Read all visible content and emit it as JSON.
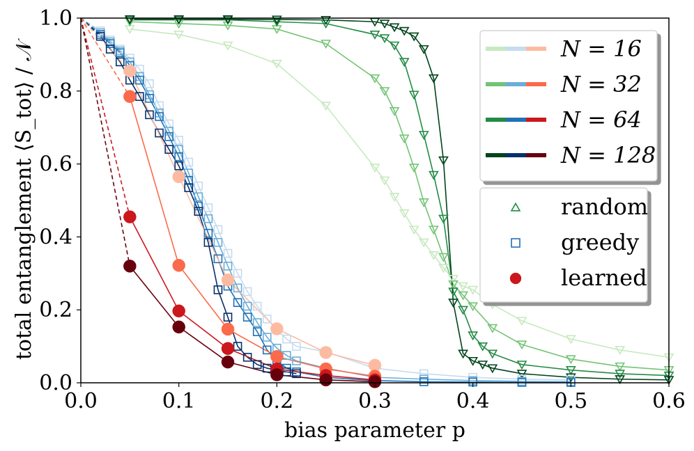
{
  "chart_data": {
    "type": "line",
    "xlabel": "bias parameter p",
    "ylabel": "total entanglement ⟨S_tot⟩ / 𝒩",
    "xlim": [
      0.0,
      0.6
    ],
    "ylim": [
      0.0,
      1.0
    ],
    "xticks": [
      "0.0",
      "0.1",
      "0.2",
      "0.3",
      "0.4",
      "0.5",
      "0.6"
    ],
    "yticks": [
      "0.0",
      "0.2",
      "0.4",
      "0.6",
      "0.8",
      "1.0"
    ],
    "legend_sizes": {
      "placement": "top-right",
      "entries": [
        {
          "label": "N = 16",
          "colors": [
            "#c7e9c0",
            "#c6dbef",
            "#fcbba1"
          ]
        },
        {
          "label": "N = 32",
          "colors": [
            "#74c476",
            "#6baed6",
            "#fb6a4a"
          ]
        },
        {
          "label": "N = 64",
          "colors": [
            "#238b45",
            "#2171b5",
            "#cb181d"
          ]
        },
        {
          "label": "N = 128",
          "colors": [
            "#00441b",
            "#08306b",
            "#67000d"
          ]
        }
      ]
    },
    "legend_methods": {
      "placement": "right",
      "entries": [
        {
          "label": "random",
          "marker": "triangle",
          "color": "#238b45"
        },
        {
          "label": "greedy",
          "marker": "square",
          "color": "#2171b5"
        },
        {
          "label": "learned",
          "marker": "circle",
          "color": "#cb181d"
        }
      ]
    },
    "series": [
      {
        "name": "random N=16",
        "method": "random",
        "N": 16,
        "color": "#c7e9c0",
        "x": [
          0.05,
          0.1,
          0.15,
          0.2,
          0.25,
          0.3,
          0.31,
          0.32,
          0.33,
          0.34,
          0.35,
          0.36,
          0.37,
          0.38,
          0.39,
          0.4,
          0.42,
          0.45,
          0.5,
          0.55,
          0.6
        ],
        "y": [
          0.97,
          0.955,
          0.925,
          0.875,
          0.76,
          0.59,
          0.555,
          0.51,
          0.465,
          0.42,
          0.385,
          0.35,
          0.315,
          0.285,
          0.265,
          0.255,
          0.215,
          0.17,
          0.12,
          0.09,
          0.07
        ]
      },
      {
        "name": "random N=32",
        "method": "random",
        "N": 32,
        "color": "#74c476",
        "x": [
          0.05,
          0.1,
          0.15,
          0.2,
          0.25,
          0.3,
          0.31,
          0.32,
          0.33,
          0.34,
          0.35,
          0.36,
          0.37,
          0.38,
          0.39,
          0.4,
          0.42,
          0.45,
          0.5,
          0.55,
          0.6
        ],
        "y": [
          0.99,
          0.985,
          0.98,
          0.97,
          0.93,
          0.835,
          0.8,
          0.745,
          0.67,
          0.59,
          0.495,
          0.42,
          0.345,
          0.27,
          0.24,
          0.21,
          0.15,
          0.105,
          0.065,
          0.045,
          0.035
        ]
      },
      {
        "name": "random N=64",
        "method": "random",
        "N": 64,
        "color": "#238b45",
        "x": [
          0.05,
          0.1,
          0.15,
          0.2,
          0.25,
          0.3,
          0.31,
          0.32,
          0.33,
          0.34,
          0.35,
          0.36,
          0.37,
          0.38,
          0.39,
          0.4,
          0.41,
          0.42,
          0.45,
          0.5,
          0.55,
          0.6
        ],
        "y": [
          0.995,
          0.995,
          0.995,
          0.99,
          0.985,
          0.955,
          0.945,
          0.925,
          0.88,
          0.79,
          0.68,
          0.57,
          0.45,
          0.25,
          0.2,
          0.13,
          0.1,
          0.08,
          0.05,
          0.035,
          0.025,
          0.02
        ]
      },
      {
        "name": "random N=128",
        "method": "random",
        "N": 128,
        "color": "#00441b",
        "x": [
          0.05,
          0.1,
          0.15,
          0.2,
          0.25,
          0.3,
          0.31,
          0.32,
          0.33,
          0.34,
          0.35,
          0.36,
          0.37,
          0.38,
          0.39,
          0.4,
          0.41,
          0.42,
          0.45,
          0.5,
          0.55,
          0.6
        ],
        "y": [
          0.997,
          0.997,
          0.997,
          0.996,
          0.995,
          0.99,
          0.985,
          0.975,
          0.965,
          0.95,
          0.915,
          0.835,
          0.61,
          0.22,
          0.08,
          0.06,
          0.05,
          0.04,
          0.025,
          0.015,
          0.01,
          0.008
        ]
      },
      {
        "name": "greedy N=16",
        "method": "greedy",
        "N": 16,
        "color": "#c6dbef",
        "x": [
          0.02,
          0.03,
          0.04,
          0.05,
          0.06,
          0.07,
          0.08,
          0.09,
          0.1,
          0.11,
          0.12,
          0.13,
          0.14,
          0.15,
          0.16,
          0.17,
          0.18,
          0.19,
          0.2,
          0.21,
          0.22,
          0.25,
          0.3,
          0.35,
          0.4,
          0.45,
          0.5
        ],
        "y": [
          0.965,
          0.94,
          0.915,
          0.89,
          0.86,
          0.82,
          0.76,
          0.71,
          0.665,
          0.605,
          0.54,
          0.48,
          0.42,
          0.355,
          0.3,
          0.25,
          0.21,
          0.175,
          0.145,
          0.12,
          0.1,
          0.085,
          0.04,
          0.025,
          0.015,
          0.01,
          0.008
        ]
      },
      {
        "name": "greedy N=32",
        "method": "greedy",
        "N": 32,
        "color": "#6baed6",
        "x": [
          0.02,
          0.03,
          0.04,
          0.05,
          0.06,
          0.07,
          0.08,
          0.09,
          0.1,
          0.11,
          0.12,
          0.13,
          0.14,
          0.15,
          0.16,
          0.17,
          0.18,
          0.19,
          0.2,
          0.21,
          0.22,
          0.25,
          0.3,
          0.35,
          0.4,
          0.45,
          0.5
        ],
        "y": [
          0.96,
          0.935,
          0.91,
          0.88,
          0.84,
          0.79,
          0.74,
          0.69,
          0.64,
          0.575,
          0.51,
          0.45,
          0.385,
          0.32,
          0.26,
          0.21,
          0.165,
          0.125,
          0.095,
          0.075,
          0.06,
          0.04,
          0.015,
          0.01,
          0.006,
          0.004,
          0.003
        ]
      },
      {
        "name": "greedy N=64",
        "method": "greedy",
        "N": 64,
        "color": "#2171b5",
        "x": [
          0.02,
          0.03,
          0.04,
          0.05,
          0.06,
          0.07,
          0.08,
          0.09,
          0.1,
          0.11,
          0.12,
          0.13,
          0.14,
          0.15,
          0.16,
          0.17,
          0.18,
          0.19,
          0.2,
          0.21,
          0.22,
          0.25,
          0.3,
          0.35,
          0.4,
          0.45,
          0.5
        ],
        "y": [
          0.955,
          0.93,
          0.905,
          0.87,
          0.83,
          0.78,
          0.73,
          0.675,
          0.62,
          0.555,
          0.485,
          0.41,
          0.34,
          0.265,
          0.22,
          0.18,
          0.14,
          0.09,
          0.06,
          0.04,
          0.03,
          0.015,
          0.006,
          0.003,
          0.002,
          0.001,
          0.001
        ]
      },
      {
        "name": "greedy N=128",
        "method": "greedy",
        "N": 128,
        "color": "#08306b",
        "x": [
          0.02,
          0.03,
          0.04,
          0.05,
          0.06,
          0.07,
          0.08,
          0.09,
          0.1,
          0.11,
          0.12,
          0.13,
          0.14,
          0.15,
          0.16,
          0.17,
          0.18,
          0.19,
          0.2,
          0.21,
          0.22
        ],
        "y": [
          0.95,
          0.915,
          0.88,
          0.83,
          0.785,
          0.735,
          0.685,
          0.64,
          0.595,
          0.535,
          0.47,
          0.385,
          0.255,
          0.18,
          0.1,
          0.07,
          0.05,
          0.04,
          0.035,
          0.03,
          0.025
        ]
      },
      {
        "name": "learned N=16",
        "method": "learned",
        "N": 16,
        "color": "#fcbba1",
        "x": [
          0.05,
          0.1,
          0.15,
          0.2,
          0.25,
          0.3
        ],
        "y": [
          0.855,
          0.565,
          0.282,
          0.148,
          0.083,
          0.048
        ]
      },
      {
        "name": "learned N=32",
        "method": "learned",
        "N": 32,
        "color": "#fb6a4a",
        "x": [
          0.05,
          0.1,
          0.15,
          0.2,
          0.25,
          0.3
        ],
        "y": [
          0.785,
          0.322,
          0.147,
          0.072,
          0.038,
          0.018
        ]
      },
      {
        "name": "learned N=64",
        "method": "learned",
        "N": 64,
        "color": "#cb181d",
        "x": [
          0.05,
          0.1,
          0.15,
          0.2,
          0.25,
          0.3
        ],
        "y": [
          0.455,
          0.197,
          0.094,
          0.038,
          0.02,
          0.008
        ]
      },
      {
        "name": "learned N=128",
        "method": "learned",
        "N": 128,
        "color": "#67000d",
        "x": [
          0.05,
          0.1,
          0.15,
          0.2,
          0.25,
          0.3
        ],
        "y": [
          0.32,
          0.153,
          0.057,
          0.022,
          0.008,
          0.003
        ]
      }
    ]
  }
}
